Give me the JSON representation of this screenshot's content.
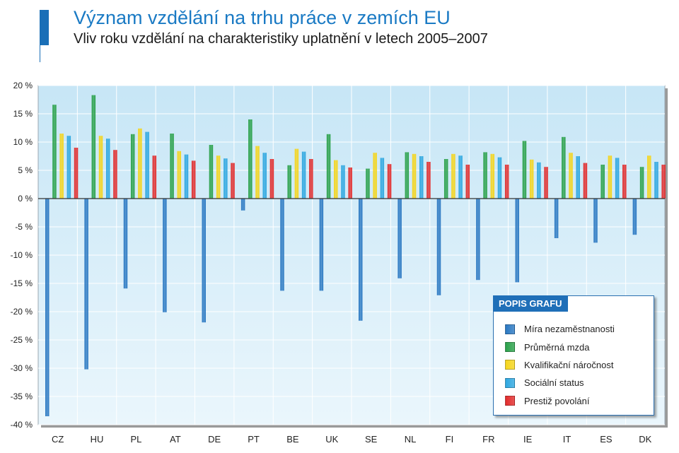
{
  "header": {
    "title": "Význam vzdělání na trhu práce v zemích EU",
    "subtitle": "Vliv roku vzdělání na charakteristiky uplatnění v letech 2005–2007"
  },
  "legend": {
    "title": "POPIS GRAFU"
  },
  "colors": {
    "background": "#ffffff",
    "plot_bg_top": "#c7e6f6",
    "plot_bg_bottom": "#eaf6fc",
    "grid": "#ffffff",
    "title": "#1a7ac4",
    "legend_header": "#1f6fb8"
  },
  "chart_data": {
    "type": "bar",
    "categories": [
      "CZ",
      "HU",
      "PL",
      "AT",
      "DE",
      "PT",
      "BE",
      "UK",
      "SE",
      "NL",
      "FI",
      "FR",
      "IE",
      "IT",
      "ES",
      "DK"
    ],
    "ylim": [
      -40,
      20
    ],
    "yticks": [
      20,
      15,
      10,
      5,
      0,
      -5,
      -10,
      -15,
      -20,
      -25,
      -30,
      -35,
      -40
    ],
    "ytick_labels": [
      "20 %",
      "15 %",
      "10 %",
      "5 %",
      "0 %",
      "-5 %",
      "-10 %",
      "-15 %",
      "-20 %",
      "-25 %",
      "-30 %",
      "-35 %",
      "-40 %"
    ],
    "grid": true,
    "legend_position": "bottom-right",
    "series": [
      {
        "name": "Míra nezaměstnanosti",
        "color": "#2a78c2",
        "values": [
          -38.5,
          -30.2,
          -15.9,
          -20.1,
          -21.9,
          -2.1,
          -16.3,
          -16.3,
          -21.6,
          -14.1,
          -17.1,
          -14.4,
          -14.8,
          -7,
          -7.8,
          -6.4
        ]
      },
      {
        "name": "Průměrná mzda",
        "color": "#2aa14a",
        "values": [
          16.6,
          18.3,
          11.4,
          11.5,
          9.5,
          14,
          5.9,
          11.4,
          5.3,
          8.2,
          7,
          8.2,
          10.2,
          10.9,
          6,
          5.6
        ]
      },
      {
        "name": "Kvalifikační náročnost",
        "color": "#f5d51c",
        "values": [
          11.5,
          11.1,
          12.4,
          8.4,
          7.6,
          9.3,
          8.8,
          6.8,
          8.1,
          7.9,
          7.9,
          7.9,
          6.9,
          8.1,
          7.6,
          7.6
        ]
      },
      {
        "name": "Sociální status",
        "color": "#2ea7e0",
        "values": [
          11.1,
          10.6,
          11.8,
          7.8,
          7.1,
          8.1,
          8.3,
          5.9,
          7.2,
          7.5,
          7.6,
          7.3,
          6.4,
          7.5,
          7.2,
          6.5
        ]
      },
      {
        "name": "Prestiž povolání",
        "color": "#e22b2b",
        "values": [
          9,
          8.6,
          7.6,
          6.7,
          6.3,
          7,
          7,
          5.5,
          6.1,
          6.5,
          6,
          6,
          5.6,
          6.3,
          6,
          6
        ]
      }
    ]
  }
}
